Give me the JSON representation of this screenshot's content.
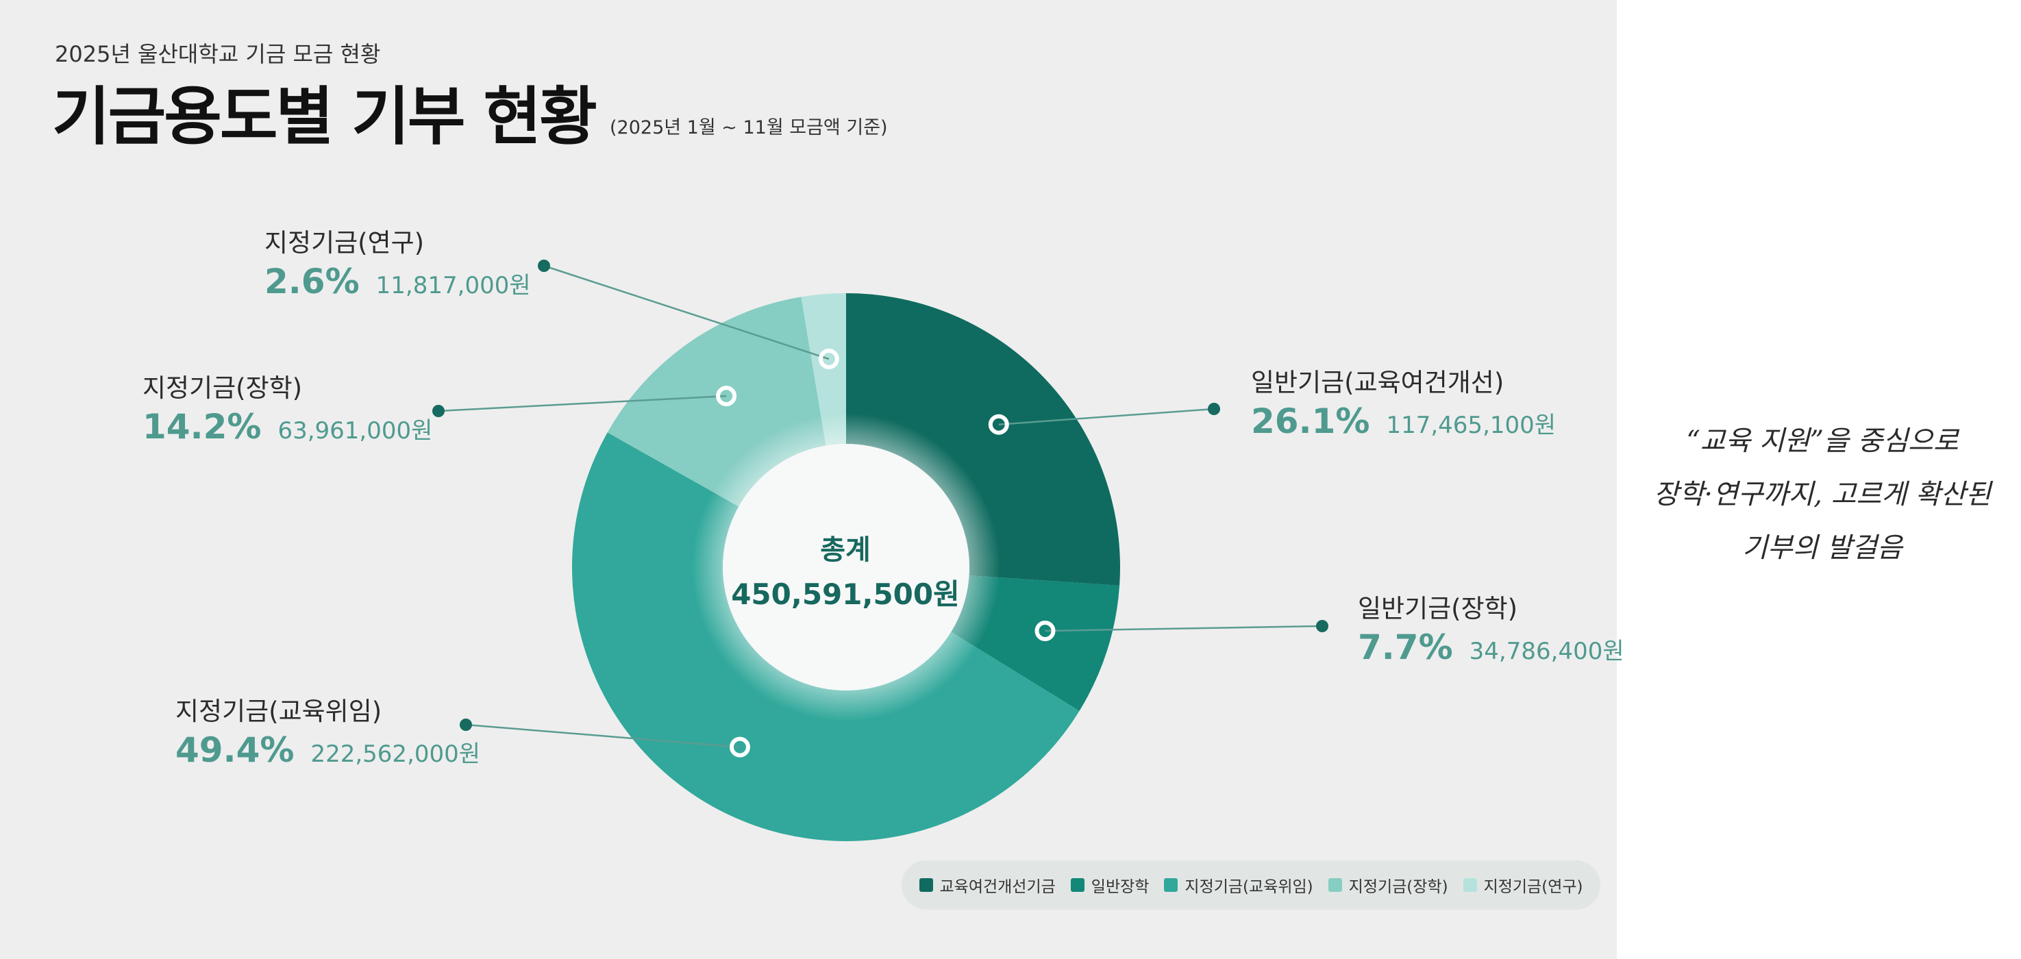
{
  "header": {
    "subtitle": "2025년 울산대학교 기금 모금 현황",
    "title": "기금용도별 기부 현황",
    "note": "(2025년 1월 ~ 11월 모금액 기준)"
  },
  "center": {
    "label": "총계",
    "total": "450,591,500원"
  },
  "chart_data": {
    "type": "pie",
    "style": "donut",
    "total": 450591500,
    "slices": [
      {
        "name": "일반기금(교육여건개선)",
        "legend": "교육여건개선기금",
        "value": 117465100,
        "percent": 26.1,
        "pct_label": "26.1%",
        "amount_label": "117,465,100원",
        "color": "#0f6b5f"
      },
      {
        "name": "일반기금(장학)",
        "legend": "일반장학",
        "value": 34786400,
        "percent": 7.7,
        "pct_label": "7.7%",
        "amount_label": "34,786,400원",
        "color": "#138778"
      },
      {
        "name": "지정기금(교육위임)",
        "legend": "지정기금(교육위임)",
        "value": 222562000,
        "percent": 49.4,
        "pct_label": "49.4%",
        "amount_label": "222,562,000원",
        "color": "#31a89b"
      },
      {
        "name": "지정기금(장학)",
        "legend": "지정기금(장학)",
        "value": 63961000,
        "percent": 14.2,
        "pct_label": "14.2%",
        "amount_label": "63,961,000원",
        "color": "#86cdc3"
      },
      {
        "name": "지정기금(연구)",
        "legend": "지정기금(연구)",
        "value": 11817000,
        "percent": 2.6,
        "pct_label": "2.6%",
        "amount_label": "11,817,000원",
        "color": "#b5e2dc"
      }
    ]
  },
  "quote": {
    "line1": "“교육 지원”을 중심으로",
    "line2": "장학·연구까지, 고르게 확산된",
    "line3": "기부의 발걸음"
  }
}
